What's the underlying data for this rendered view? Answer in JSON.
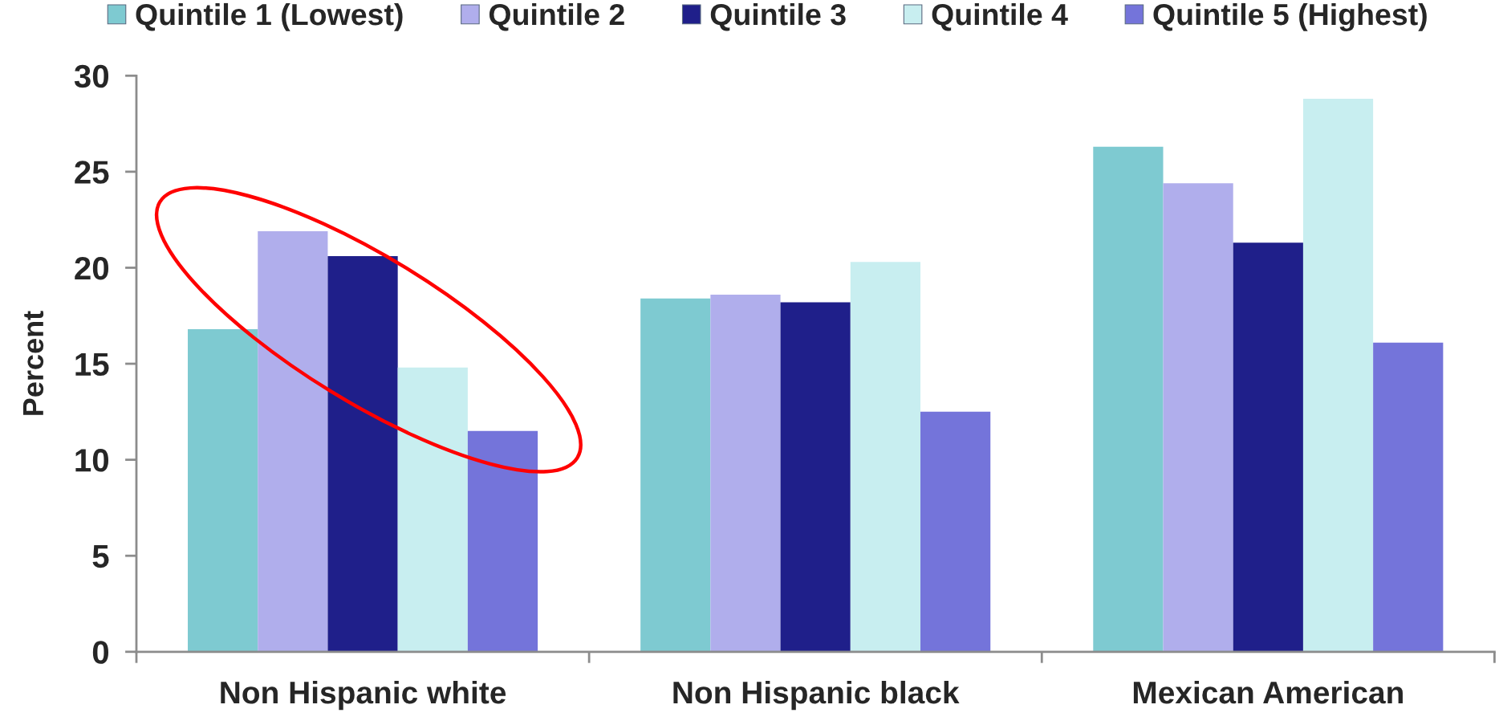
{
  "chart_data": {
    "type": "bar",
    "ylabel": "Percent",
    "categories": [
      "Non Hispanic white",
      "Non Hispanic black",
      "Mexican American"
    ],
    "series": [
      {
        "name": "Quintile 1 (Lowest)",
        "color": "#7ecad1",
        "values": [
          16.8,
          18.4,
          26.3
        ]
      },
      {
        "name": "Quintile 2",
        "color": "#b0aeec",
        "values": [
          21.9,
          18.6,
          24.4
        ]
      },
      {
        "name": "Quintile 3",
        "color": "#1f1f8a",
        "values": [
          20.6,
          18.2,
          21.3
        ]
      },
      {
        "name": "Quintile 4",
        "color": "#c8eef0",
        "values": [
          14.8,
          20.3,
          28.8
        ]
      },
      {
        "name": "Quintile 5 (Highest)",
        "color": "#7474da",
        "values": [
          11.5,
          12.5,
          16.1
        ]
      }
    ],
    "ylim": [
      0,
      30
    ],
    "yticks": [
      0,
      5,
      10,
      15,
      20,
      25,
      30
    ],
    "legend": "top"
  }
}
